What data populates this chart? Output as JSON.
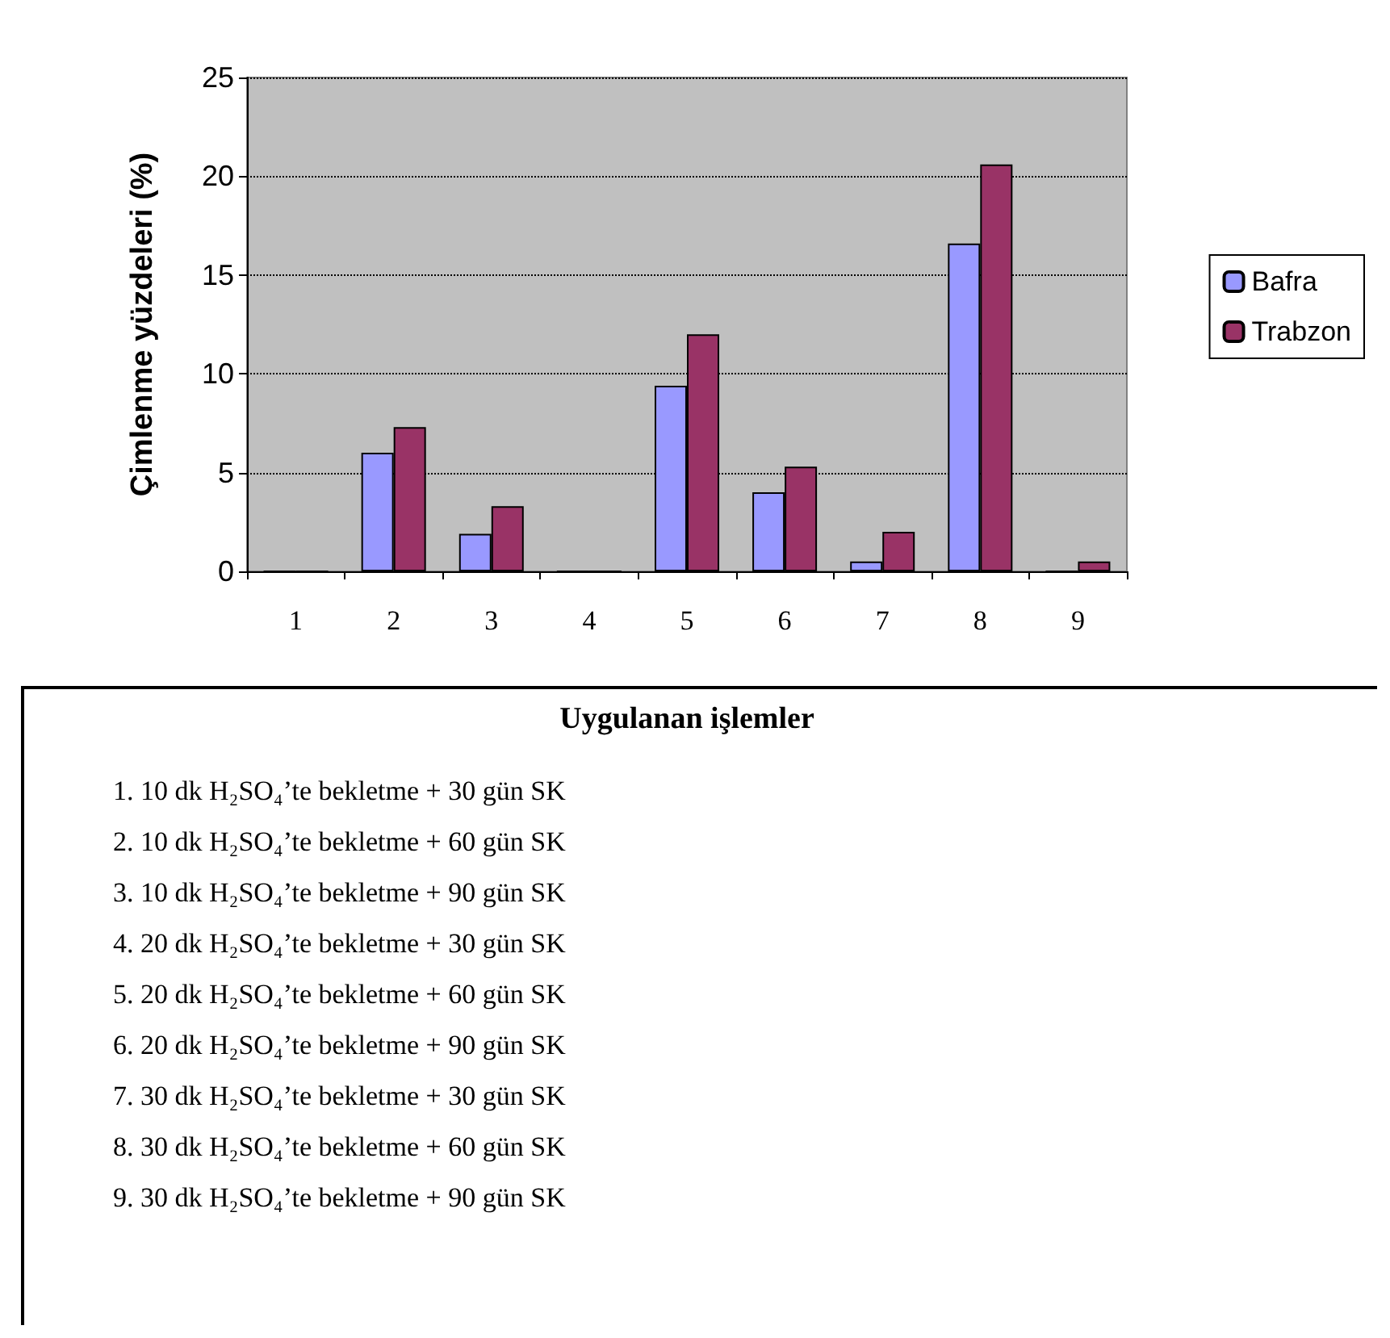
{
  "chart_data": {
    "type": "bar",
    "xlabel": "Uygulanan işlemler",
    "ylabel": "Çimlenme yüzdeleri (%)",
    "categories": [
      "1",
      "2",
      "3",
      "4",
      "5",
      "6",
      "7",
      "8",
      "9"
    ],
    "series": [
      {
        "name": "Bafra",
        "color": "#9999ff",
        "values": [
          0,
          6.0,
          1.9,
          0,
          9.4,
          4.0,
          0.5,
          16.6,
          0
        ]
      },
      {
        "name": "Trabzon",
        "color": "#993366",
        "values": [
          0,
          7.3,
          3.3,
          0,
          12.0,
          5.3,
          2.0,
          20.6,
          0.5
        ]
      }
    ],
    "ylim": [
      0,
      25
    ],
    "yticks": [
      0,
      5,
      10,
      15,
      20,
      25
    ],
    "grid": "y",
    "legend": "right",
    "annotations": [
      "1. 10 dk H₂SO₄’te bekletme + 30 gün SK",
      "2. 10 dk H₂SO₄’te bekletme + 60 gün SK",
      "3. 10 dk H₂SO₄’te bekletme + 90 gün SK",
      "4. 20 dk H₂SO₄’te bekletme + 30 gün SK",
      "5. 20 dk H₂SO₄’te bekletme + 60 gün SK",
      "6. 20 dk H₂SO₄’te bekletme + 90 gün SK",
      "7. 30 dk H₂SO₄’te bekletme + 30 gün SK",
      "8. 30 dk H₂SO₄’te bekletme + 60 gün SK",
      "9. 30 dk H₂SO₄’te bekletme + 90 gün SK"
    ]
  }
}
